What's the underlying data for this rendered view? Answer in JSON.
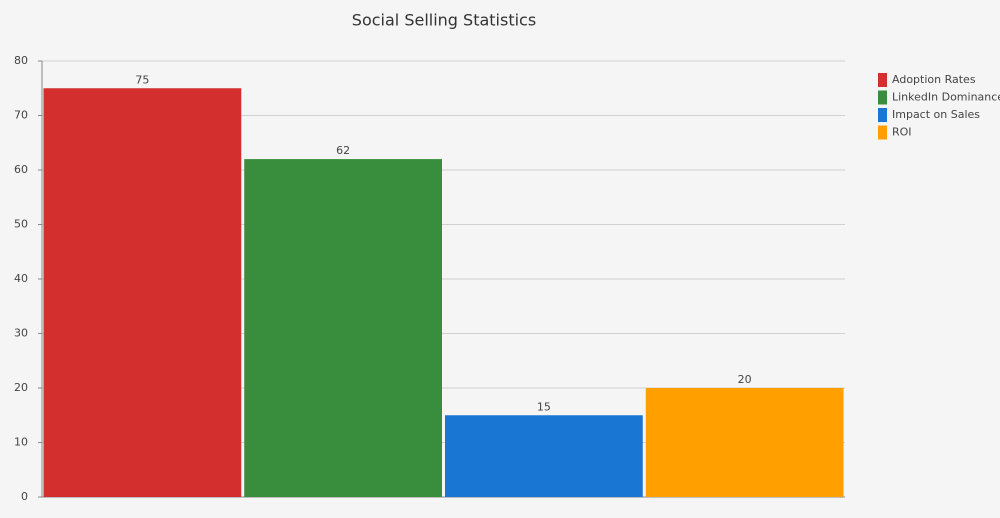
{
  "chart_data": {
    "type": "bar",
    "title": "Social Selling Statistics",
    "categories": [
      null
    ],
    "series": [
      {
        "name": "Adoption Rates",
        "color": "#d32f2f",
        "values": [
          75
        ]
      },
      {
        "name": "LinkedIn Dominance",
        "color": "#388e3c",
        "values": [
          62
        ]
      },
      {
        "name": "Impact on Sales",
        "color": "#1976d2",
        "values": [
          15
        ]
      },
      {
        "name": "ROI",
        "color": "#ffa000",
        "values": [
          20
        ]
      }
    ],
    "ylim": [
      0,
      80
    ],
    "yticks": [
      0,
      10,
      20,
      30,
      40,
      50,
      60,
      70,
      80
    ],
    "grid": true,
    "legend": "right"
  }
}
